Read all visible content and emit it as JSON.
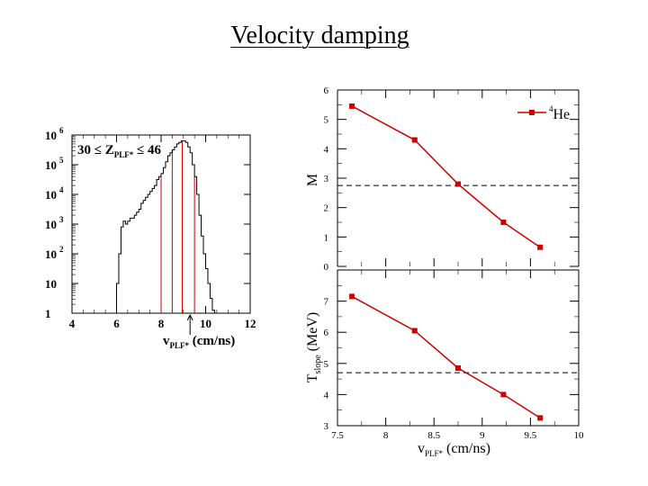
{
  "title": "Velocity damping",
  "chart_data": [
    {
      "type": "histogram",
      "panel": "left",
      "annotation": "30 ≤ Z_PLF* ≤ 46",
      "annotation_main": "30 ≤ Z",
      "annotation_sub": "PLF*",
      "annotation_tail": " ≤ 46",
      "xlabel_main": "v",
      "xlabel_sub": "PLF*",
      "xlabel_tail": " (cm/ns)",
      "xlim": [
        4,
        12
      ],
      "ylim_log10": [
        0,
        6
      ],
      "x_ticks": [
        4,
        6,
        8,
        10,
        12
      ],
      "x_tick_labels": [
        "4",
        "6",
        "8",
        "10",
        "12"
      ],
      "y_tick_labels": [
        {
          "base": "1",
          "exp": ""
        },
        {
          "base": "10",
          "exp": ""
        },
        {
          "base": "10",
          "exp": "2"
        },
        {
          "base": "10",
          "exp": "3"
        },
        {
          "base": "10",
          "exp": "4"
        },
        {
          "base": "10",
          "exp": "5"
        },
        {
          "base": "10",
          "exp": "6"
        }
      ],
      "bin_edges": [
        6.0,
        6.1,
        6.2,
        6.3,
        6.4,
        6.5,
        6.6,
        6.7,
        6.8,
        6.9,
        7.0,
        7.1,
        7.2,
        7.3,
        7.4,
        7.5,
        7.6,
        7.7,
        7.8,
        7.9,
        8.0,
        8.1,
        8.2,
        8.3,
        8.4,
        8.5,
        8.6,
        8.7,
        8.8,
        8.9,
        9.0,
        9.1,
        9.2,
        9.3,
        9.4,
        9.5,
        9.6,
        9.7,
        9.8,
        9.9,
        10.0,
        10.1,
        10.2,
        10.3,
        10.4
      ],
      "log10_counts": [
        1.0,
        2.0,
        2.9,
        3.1,
        3.0,
        3.1,
        3.2,
        3.2,
        3.3,
        3.4,
        3.5,
        3.7,
        3.8,
        3.9,
        4.0,
        4.1,
        4.2,
        4.3,
        4.5,
        4.6,
        4.7,
        4.9,
        5.1,
        5.3,
        5.4,
        5.5,
        5.6,
        5.7,
        5.75,
        5.8,
        5.8,
        5.75,
        5.6,
        5.4,
        5.0,
        4.6,
        4.0,
        3.3,
        2.6,
        2.0,
        1.5,
        1.0,
        0.5,
        0.1
      ],
      "cut_lines": [
        8.0,
        8.5,
        8.95,
        9.5
      ],
      "arrow_at": 9.3
    },
    {
      "type": "line",
      "panel": "right-top",
      "ylabel": "M",
      "legend": "⁴He",
      "legend_sup": "4",
      "legend_text": "He",
      "color": "#cc0000",
      "xlim": [
        7.5,
        10
      ],
      "ylim": [
        0,
        6
      ],
      "y_ticks": [
        0,
        1,
        2,
        3,
        4,
        5,
        6
      ],
      "y_tick_labels": [
        "0",
        "1",
        "2",
        "3",
        "4",
        "5",
        "6"
      ],
      "x": [
        7.65,
        8.3,
        8.75,
        9.22,
        9.6
      ],
      "y": [
        5.45,
        4.3,
        2.8,
        1.5,
        0.65
      ],
      "reference_line": 2.75
    },
    {
      "type": "line",
      "panel": "right-bottom",
      "ylabel_main": "T",
      "ylabel_sub": "slope",
      "ylabel_tail": " (MeV)",
      "xlabel_main": "v",
      "xlabel_sub": "PLF*",
      "xlabel_tail": " (cm/ns)",
      "color": "#cc0000",
      "xlim": [
        7.5,
        10
      ],
      "ylim": [
        3,
        8
      ],
      "x_ticks": [
        7.5,
        8,
        8.5,
        9,
        9.5,
        10
      ],
      "x_tick_labels": [
        "7.5",
        "8",
        "8.5",
        "9",
        "9.5",
        "10"
      ],
      "y_ticks": [
        3,
        4,
        5,
        6,
        7
      ],
      "y_tick_labels": [
        "3",
        "4",
        "5",
        "6",
        "7"
      ],
      "x": [
        7.65,
        8.3,
        8.75,
        9.22,
        9.6
      ],
      "y": [
        7.15,
        6.05,
        4.85,
        4.0,
        3.25
      ],
      "reference_line": 4.7
    }
  ]
}
